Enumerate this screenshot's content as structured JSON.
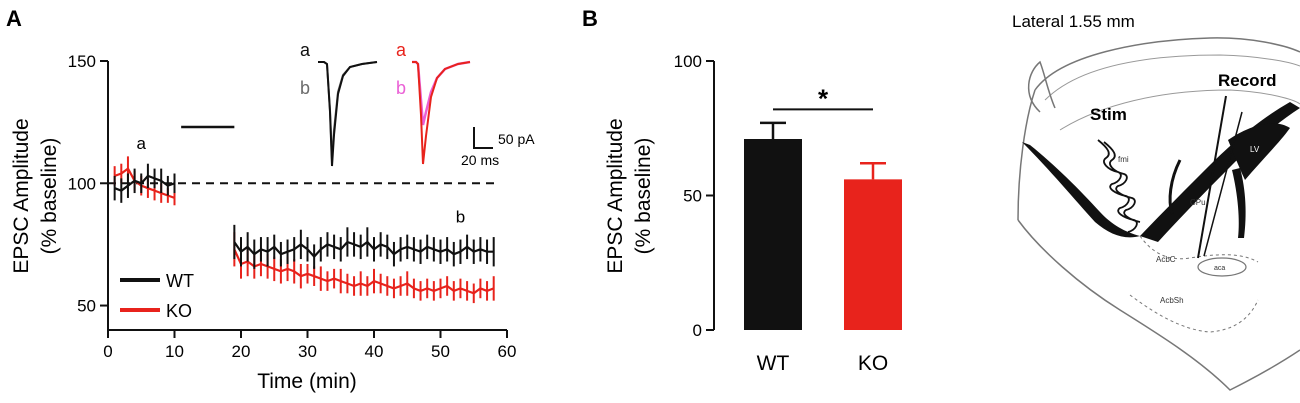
{
  "panel_a": {
    "label": "A"
  },
  "panel_b": {
    "label": "B"
  },
  "panel_c": {
    "title": "Lateral 1.55 mm",
    "stim_label": "Stim",
    "record_label": "Record",
    "region_labels": [
      "fmi",
      "LV",
      "CPu",
      "AcbC",
      "aca",
      "AcbSh"
    ]
  },
  "inset": {
    "wt_a": "a",
    "wt_b": "b",
    "ko_a": "a",
    "ko_b": "b",
    "scale_y": "50 pA",
    "scale_x": "20 ms",
    "colors": {
      "wt_a": "#111111",
      "wt_b": "#6b6b6b",
      "ko_a": "#e8231c",
      "ko_b": "#ea5fd5"
    }
  },
  "chart_data": [
    {
      "type": "line",
      "title": "",
      "xlabel": "Time (min)",
      "ylabel": "EPSC Amplitude (% baseline)",
      "xlim": [
        0,
        60
      ],
      "ylim": [
        40,
        150
      ],
      "xticks": [
        "0",
        "10",
        "20",
        "30",
        "40",
        "50",
        "60"
      ],
      "yticks": [
        "50",
        "100",
        "150"
      ],
      "baseline": 100,
      "annotations": [
        {
          "text": "a",
          "x": 5,
          "y": 114
        },
        {
          "text": "b",
          "x": 53,
          "y": 84
        }
      ],
      "tetanus_bar": {
        "x_start": 11,
        "x_end": 19,
        "y": 123
      },
      "legend": {
        "position": "bottom-left",
        "entries": [
          "WT",
          "KO"
        ]
      },
      "series": [
        {
          "name": "WT",
          "color": "#111111",
          "x": [
            1,
            2,
            3,
            4,
            5,
            6,
            7,
            8,
            9,
            10,
            19,
            20,
            21,
            22,
            23,
            24,
            25,
            26,
            27,
            28,
            29,
            30,
            31,
            32,
            33,
            34,
            35,
            36,
            37,
            38,
            39,
            40,
            41,
            42,
            43,
            44,
            45,
            46,
            47,
            48,
            49,
            50,
            51,
            52,
            53,
            54,
            55,
            56,
            57,
            58
          ],
          "y": [
            98,
            97,
            99,
            101,
            100,
            103,
            102,
            101,
            99,
            100,
            76,
            72,
            74,
            71,
            73,
            72,
            74,
            71,
            72,
            73,
            75,
            73,
            70,
            73,
            75,
            74,
            73,
            76,
            75,
            74,
            76,
            73,
            75,
            74,
            71,
            73,
            74,
            73,
            72,
            74,
            73,
            72,
            73,
            71,
            72,
            74,
            72,
            73,
            72,
            72
          ],
          "err": [
            5,
            5,
            5,
            5,
            4,
            5,
            4,
            5,
            4,
            4,
            7,
            6,
            6,
            6,
            5,
            6,
            5,
            5,
            5,
            5,
            6,
            5,
            5,
            5,
            5,
            5,
            5,
            6,
            5,
            5,
            6,
            5,
            5,
            5,
            5,
            5,
            5,
            5,
            5,
            5,
            5,
            5,
            5,
            5,
            5,
            5,
            5,
            5,
            5,
            6
          ]
        },
        {
          "name": "KO",
          "color": "#e8231c",
          "x": [
            1,
            2,
            3,
            4,
            5,
            6,
            7,
            8,
            9,
            10,
            19,
            20,
            21,
            22,
            23,
            24,
            25,
            26,
            27,
            28,
            29,
            30,
            31,
            32,
            33,
            34,
            35,
            36,
            37,
            38,
            39,
            40,
            41,
            42,
            43,
            44,
            45,
            46,
            47,
            48,
            49,
            50,
            51,
            52,
            53,
            54,
            55,
            56,
            57,
            58
          ],
          "y": [
            103,
            104,
            106,
            101,
            99,
            98,
            97,
            96,
            95,
            94,
            73,
            67,
            68,
            66,
            67,
            66,
            65,
            64,
            65,
            64,
            62,
            63,
            62,
            61,
            60,
            61,
            60,
            59,
            58,
            59,
            58,
            60,
            59,
            58,
            57,
            58,
            59,
            57,
            56,
            57,
            56,
            57,
            58,
            56,
            57,
            56,
            55,
            57,
            56,
            57
          ],
          "err": [
            4,
            4,
            5,
            4,
            4,
            4,
            4,
            4,
            3,
            3,
            7,
            6,
            6,
            5,
            5,
            5,
            5,
            5,
            5,
            5,
            5,
            4,
            4,
            5,
            4,
            4,
            5,
            4,
            4,
            5,
            4,
            5,
            4,
            4,
            4,
            4,
            5,
            4,
            4,
            4,
            4,
            4,
            4,
            4,
            4,
            4,
            4,
            4,
            4,
            5
          ]
        }
      ]
    },
    {
      "type": "bar",
      "title": "",
      "xlabel": "",
      "ylabel": "EPSC Amplitude (% baseline)",
      "ylim": [
        0,
        100
      ],
      "yticks": [
        "0",
        "50",
        "100"
      ],
      "categories": [
        "WT",
        "KO"
      ],
      "values": [
        71,
        56
      ],
      "errors": [
        6,
        6
      ],
      "colors": [
        "#111111",
        "#e8231c"
      ],
      "significance": {
        "label": "*",
        "y": 82
      }
    }
  ]
}
